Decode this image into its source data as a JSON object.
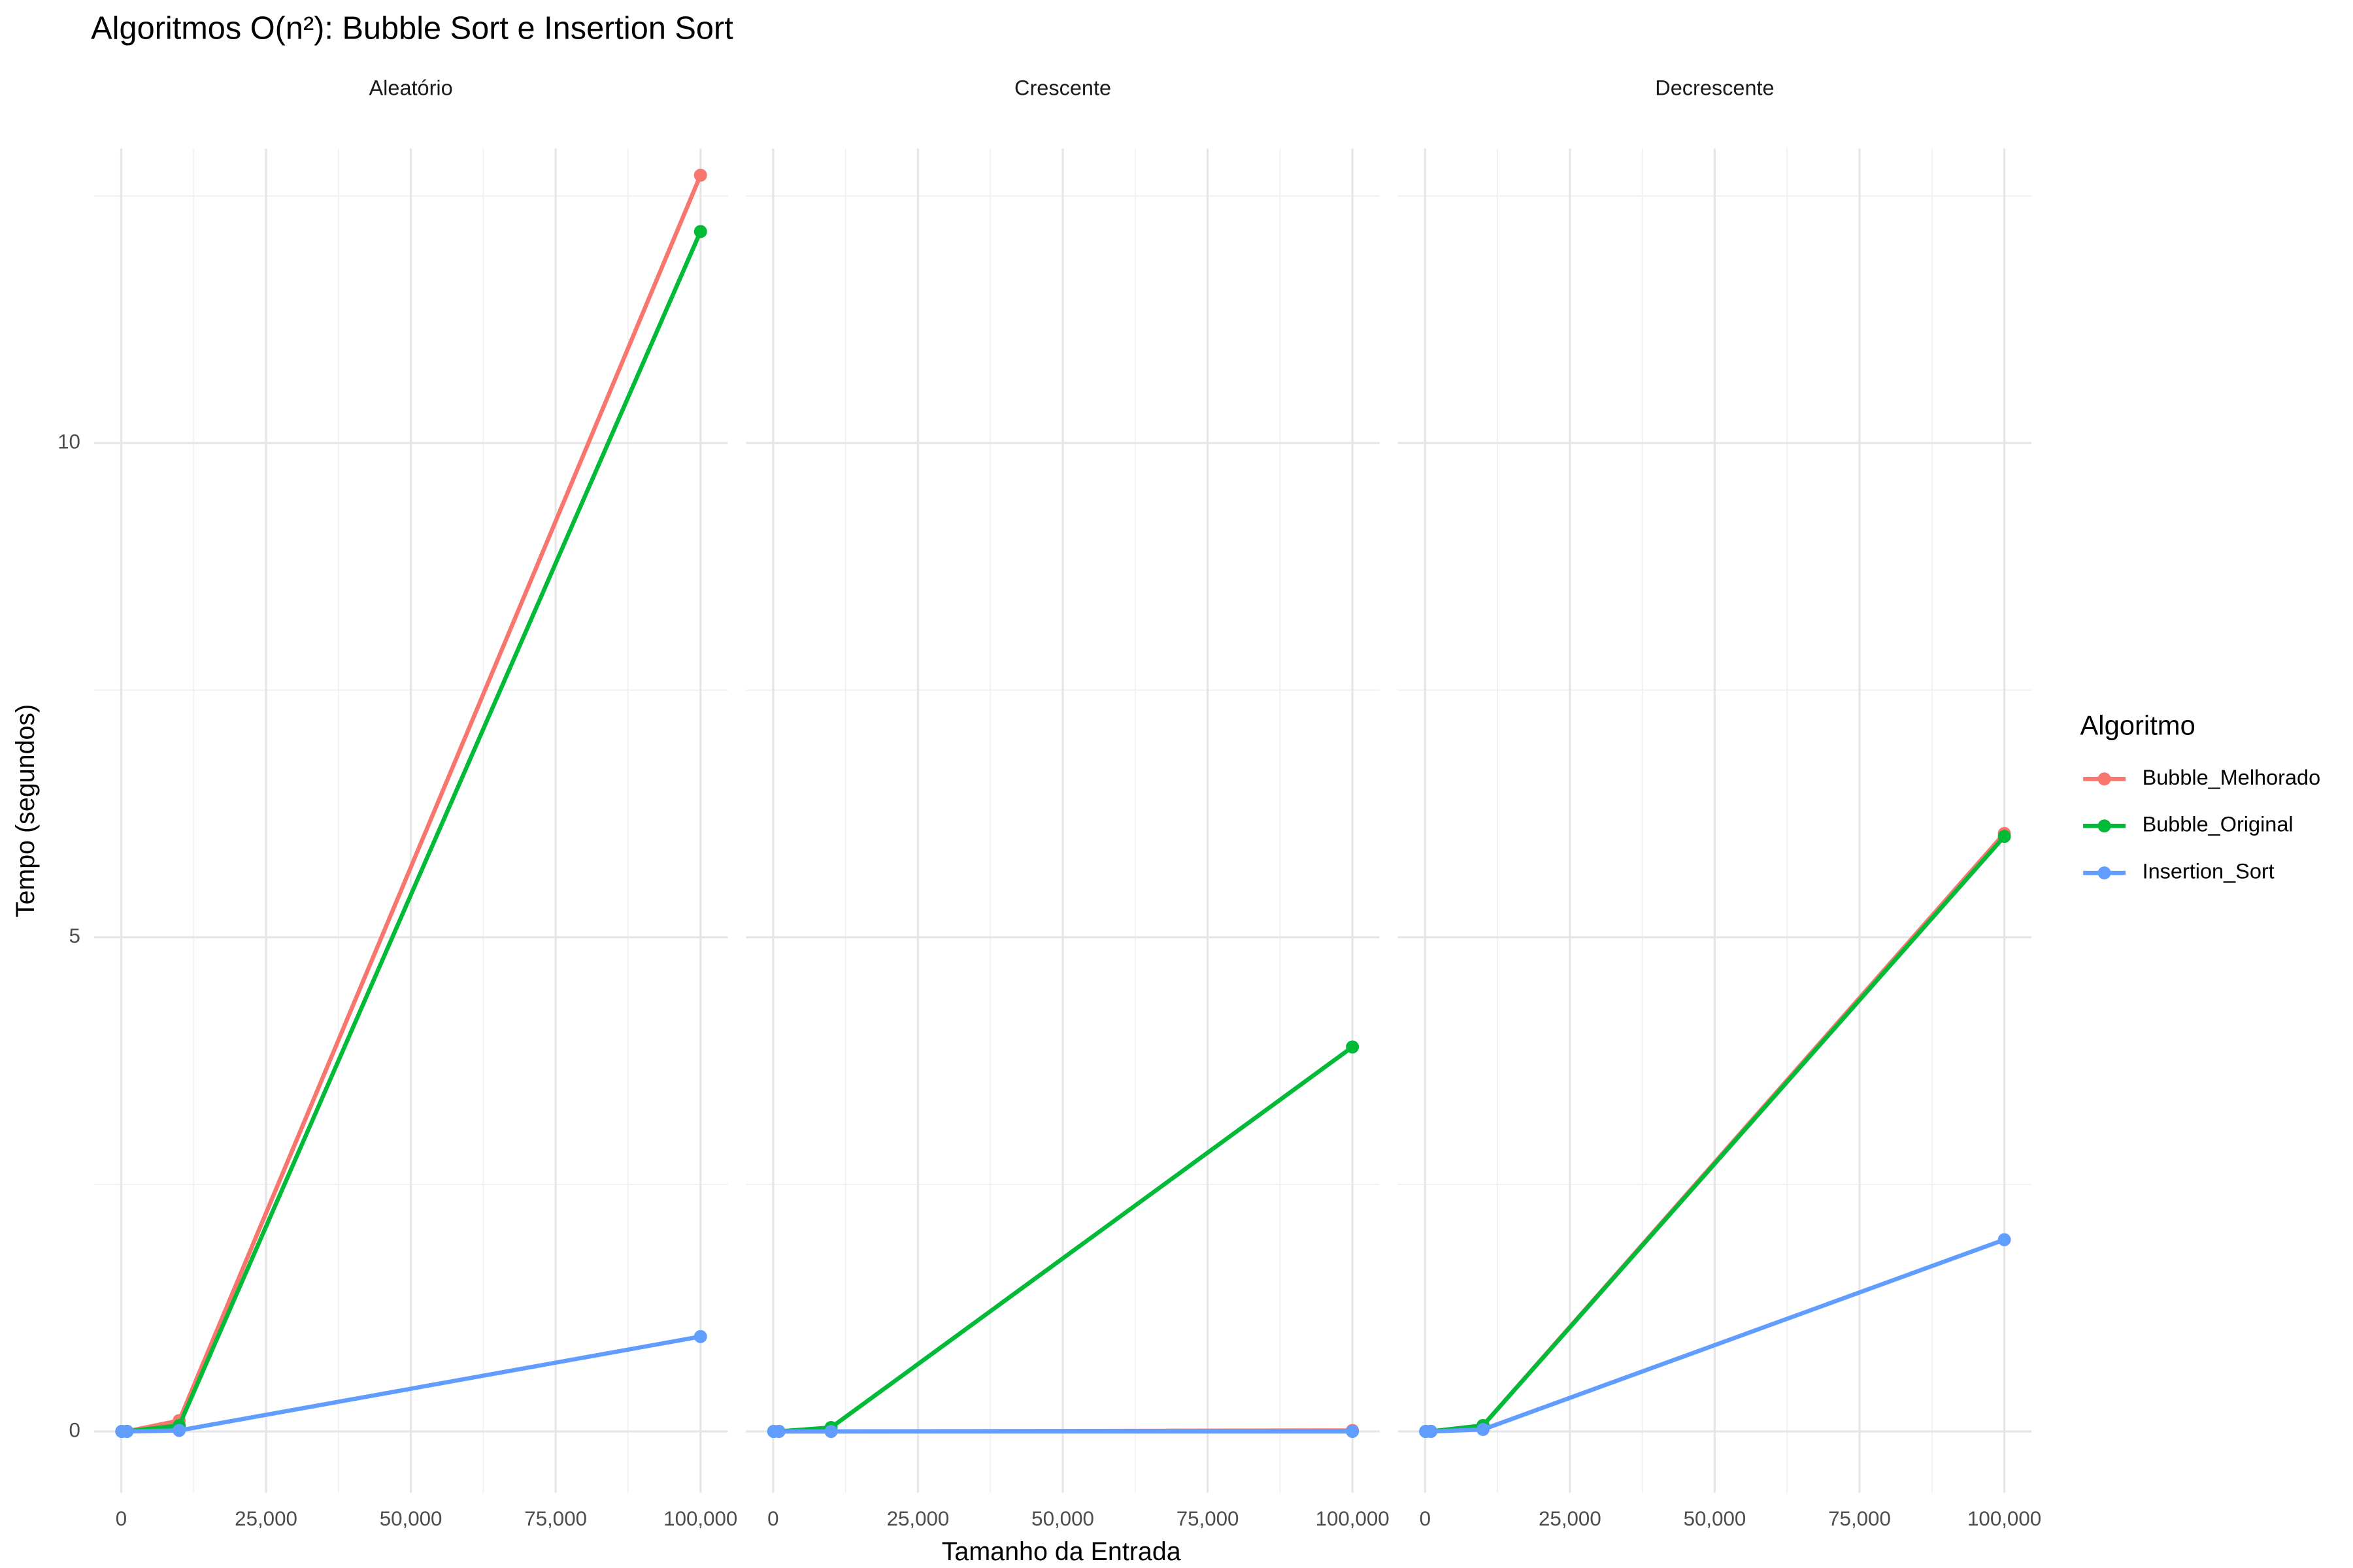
{
  "chart_data": {
    "type": "line",
    "title": "Algoritmos O(n²): Bubble Sort e Insertion Sort",
    "x_label": "Tamanho da Entrada",
    "y_label": "Tempo (segundos)",
    "legend_title": "Algoritmo",
    "legend": "right",
    "grid": true,
    "x": [
      100,
      1000,
      10000,
      100000
    ],
    "xlim": [
      -4700,
      104700
    ],
    "xticks": [
      0,
      {
        "value": 25000,
        "label": "25,000"
      },
      {
        "value": 50000,
        "label": "50,000"
      },
      {
        "value": 75000,
        "label": "75,000"
      },
      {
        "value": 100000,
        "label": "100,000"
      }
    ],
    "x_minor_ticks": [
      12500,
      37500,
      62500,
      87500
    ],
    "ylim": [
      -0.62,
      12.98
    ],
    "yticks": [
      0,
      5,
      10
    ],
    "y_minor_ticks": [
      2.5,
      7.5,
      12.5
    ],
    "series": [
      {
        "name": "Bubble_Melhorado",
        "color": "#F8766D"
      },
      {
        "name": "Bubble_Original",
        "color": "#00BA38"
      },
      {
        "name": "Insertion_Sort",
        "color": "#619CFF"
      }
    ],
    "facets": [
      {
        "title": "Aleatório",
        "values": [
          [
            0,
            0.001,
            0.11,
            12.71
          ],
          [
            0,
            0.001,
            0.06,
            12.14
          ],
          [
            0,
            0,
            0.01,
            0.96
          ]
        ]
      },
      {
        "title": "Crescente",
        "values": [
          [
            0,
            0,
            0,
            0.01
          ],
          [
            0,
            0.001,
            0.04,
            3.89
          ],
          [
            0,
            0,
            0,
            0
          ]
        ]
      },
      {
        "title": "Decrescente",
        "values": [
          [
            0,
            0.001,
            0.06,
            6.05
          ],
          [
            0,
            0.001,
            0.06,
            6.02
          ],
          [
            0,
            0,
            0.02,
            1.94
          ]
        ]
      }
    ]
  }
}
